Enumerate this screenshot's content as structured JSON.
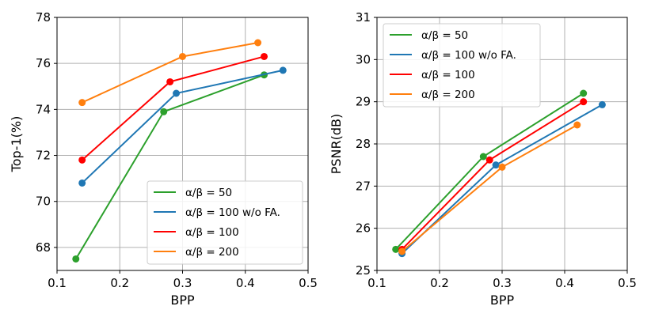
{
  "chart_data": [
    {
      "type": "line",
      "title": "",
      "xlabel": "BPP",
      "ylabel": "Top-1(%)",
      "xlim": [
        0.1,
        0.5
      ],
      "ylim": [
        67,
        78
      ],
      "xticks": [
        "0.1",
        "0.2",
        "0.3",
        "0.4",
        "0.5"
      ],
      "yticks": [
        "68",
        "70",
        "72",
        "74",
        "76",
        "78"
      ],
      "ytick_values": [
        68,
        70,
        72,
        74,
        76,
        78
      ],
      "xtick_values": [
        0.1,
        0.2,
        0.3,
        0.4,
        0.5
      ],
      "grid": true,
      "legend_position": "lower-right",
      "series": [
        {
          "name": "α/β = 50",
          "color": "#2ca02c",
          "x": [
            0.13,
            0.27,
            0.43
          ],
          "y": [
            67.5,
            73.9,
            75.5
          ]
        },
        {
          "name": "α/β = 100 w/o FA.",
          "color": "#1f77b4",
          "x": [
            0.14,
            0.29,
            0.46
          ],
          "y": [
            70.8,
            74.7,
            75.7
          ]
        },
        {
          "name": "α/β = 100",
          "color": "#ff0000",
          "x": [
            0.14,
            0.28,
            0.43
          ],
          "y": [
            71.8,
            75.2,
            76.3
          ]
        },
        {
          "name": "α/β = 200",
          "color": "#ff7f0e",
          "x": [
            0.14,
            0.3,
            0.42
          ],
          "y": [
            74.3,
            76.3,
            76.9
          ]
        }
      ]
    },
    {
      "type": "line",
      "title": "",
      "xlabel": "BPP",
      "ylabel": "PSNR(dB)",
      "xlim": [
        0.1,
        0.5
      ],
      "ylim": [
        25,
        31
      ],
      "xticks": [
        "0.1",
        "0.2",
        "0.3",
        "0.4",
        "0.5"
      ],
      "yticks": [
        "25",
        "26",
        "27",
        "28",
        "29",
        "30",
        "31"
      ],
      "ytick_values": [
        25,
        26,
        27,
        28,
        29,
        30,
        31
      ],
      "xtick_values": [
        0.1,
        0.2,
        0.3,
        0.4,
        0.5
      ],
      "grid": true,
      "legend_position": "upper-left",
      "series": [
        {
          "name": "α/β = 50",
          "color": "#2ca02c",
          "x": [
            0.13,
            0.27,
            0.43
          ],
          "y": [
            25.5,
            27.7,
            29.2
          ]
        },
        {
          "name": "α/β = 100 w/o FA.",
          "color": "#1f77b4",
          "x": [
            0.14,
            0.29,
            0.46
          ],
          "y": [
            25.4,
            27.5,
            28.93
          ]
        },
        {
          "name": "α/β = 100",
          "color": "#ff0000",
          "x": [
            0.14,
            0.28,
            0.43
          ],
          "y": [
            25.5,
            27.62,
            29.0
          ]
        },
        {
          "name": "α/β = 200",
          "color": "#ff7f0e",
          "x": [
            0.14,
            0.3,
            0.42
          ],
          "y": [
            25.45,
            27.45,
            28.45
          ]
        }
      ]
    }
  ]
}
